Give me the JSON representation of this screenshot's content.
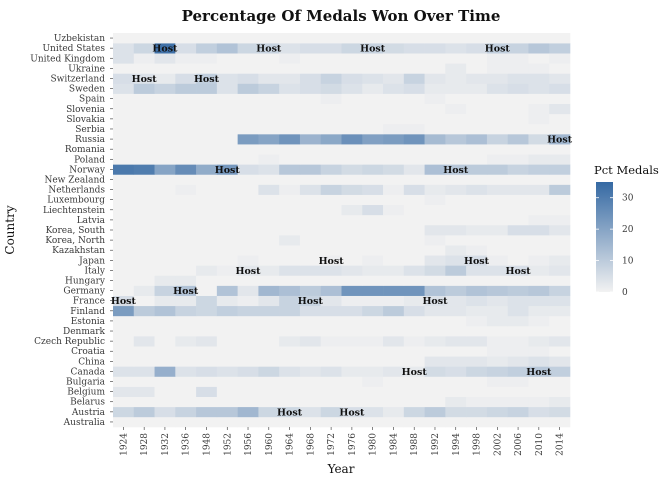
{
  "chart_data": {
    "type": "heatmap",
    "title": "Percentage Of Medals Won Over Time",
    "xlabel": "Year",
    "ylabel": "Country",
    "x": [
      "1924",
      "1928",
      "1932",
      "1936",
      "1948",
      "1952",
      "1956",
      "1960",
      "1964",
      "1968",
      "1972",
      "1976",
      "1980",
      "1984",
      "1988",
      "1992",
      "1994",
      "1998",
      "2002",
      "2006",
      "2010",
      "2014"
    ],
    "y": [
      "Australia",
      "Austria",
      "Belarus",
      "Belgium",
      "Bulgaria",
      "Canada",
      "China",
      "Croatia",
      "Czech Republic",
      "Denmark",
      "Estonia",
      "Finland",
      "France",
      "Germany",
      "Hungary",
      "Italy",
      "Japan",
      "Kazakhstan",
      "Korea, North",
      "Korea, South",
      "Latvia",
      "Liechtenstein",
      "Luxembourg",
      "Netherlands",
      "New Zealand",
      "Norway",
      "Poland",
      "Romania",
      "Russia",
      "Serbia",
      "Slovakia",
      "Slovenia",
      "Spain",
      "Sweden",
      "Switzerland",
      "Ukraine",
      "United Kingdom",
      "United States",
      "Uzbekistan"
    ],
    "values": {
      "United States": [
        4,
        7,
        33,
        5,
        9,
        12,
        7,
        8,
        4,
        5,
        5,
        7,
        8,
        6,
        5,
        5,
        4,
        5,
        9,
        8,
        11,
        9
      ],
      "United Kingdom": [
        4,
        1,
        3,
        1,
        1,
        0,
        0,
        0,
        1,
        0,
        0,
        0,
        0,
        0,
        0,
        0,
        0,
        0,
        1,
        1,
        0,
        1
      ],
      "Ukraine": [
        0,
        0,
        0,
        0,
        0,
        0,
        0,
        0,
        0,
        0,
        0,
        0,
        0,
        0,
        0,
        0,
        2,
        0,
        1,
        1,
        1,
        0
      ],
      "Switzerland": [
        5,
        4,
        2,
        5,
        9,
        4,
        5,
        3,
        3,
        5,
        8,
        5,
        4,
        3,
        8,
        3,
        2,
        3,
        3,
        4,
        4,
        3
      ],
      "Sweden": [
        4,
        10,
        8,
        10,
        10,
        4,
        10,
        8,
        4,
        5,
        6,
        4,
        2,
        4,
        5,
        2,
        2,
        2,
        4,
        5,
        4,
        5
      ],
      "Spain": [
        0,
        0,
        0,
        0,
        0,
        0,
        0,
        0,
        0,
        0,
        1,
        0,
        0,
        0,
        0,
        1,
        0,
        0,
        0,
        0,
        0,
        0
      ],
      "Slovenia": [
        0,
        0,
        0,
        0,
        0,
        0,
        0,
        0,
        0,
        0,
        0,
        0,
        0,
        0,
        0,
        0,
        1,
        0,
        0,
        0,
        1,
        3
      ],
      "Slovakia": [
        0,
        0,
        0,
        0,
        0,
        0,
        0,
        0,
        0,
        0,
        0,
        0,
        0,
        0,
        0,
        0,
        0,
        0,
        0,
        0,
        1,
        0
      ],
      "Serbia": [
        0,
        0,
        0,
        0,
        0,
        0,
        0,
        0,
        0,
        0,
        0,
        0,
        0,
        1,
        1,
        0,
        0,
        0,
        0,
        0,
        0,
        0
      ],
      "Russia": [
        0,
        0,
        0,
        0,
        0,
        0,
        22,
        20,
        24,
        16,
        19,
        25,
        21,
        22,
        24,
        14,
        11,
        13,
        8,
        11,
        6,
        15
      ],
      "Romania": [
        0,
        0,
        0,
        0,
        0,
        0,
        0,
        0,
        0,
        0,
        0,
        0,
        0,
        0,
        0,
        0,
        0,
        0,
        0,
        0,
        0,
        0
      ],
      "Poland": [
        0,
        0,
        0,
        0,
        0,
        0,
        0,
        1,
        0,
        0,
        0,
        0,
        0,
        0,
        0,
        0,
        0,
        0,
        1,
        1,
        2,
        2
      ],
      "Norway": [
        31,
        30,
        20,
        26,
        18,
        23,
        5,
        4,
        11,
        11,
        8,
        6,
        7,
        6,
        3,
        13,
        11,
        10,
        10,
        8,
        9,
        9
      ],
      "New Zealand": [
        0,
        0,
        0,
        0,
        0,
        0,
        0,
        0,
        0,
        0,
        0,
        0,
        0,
        0,
        0,
        0,
        0,
        0,
        0,
        0,
        0,
        0
      ],
      "Netherlands": [
        0,
        0,
        0,
        1,
        0,
        0,
        0,
        4,
        1,
        4,
        8,
        6,
        5,
        1,
        5,
        2,
        3,
        4,
        3,
        3,
        3,
        10
      ],
      "Luxembourg": [
        0,
        0,
        0,
        0,
        0,
        0,
        0,
        0,
        0,
        0,
        0,
        0,
        0,
        0,
        0,
        1,
        0,
        0,
        0,
        0,
        0,
        0
      ],
      "Liechtenstein": [
        0,
        0,
        0,
        0,
        0,
        0,
        0,
        0,
        0,
        0,
        0,
        2,
        5,
        1,
        0,
        0,
        0,
        0,
        0,
        0,
        0,
        0
      ],
      "Latvia": [
        0,
        0,
        0,
        0,
        0,
        0,
        0,
        0,
        0,
        0,
        0,
        0,
        0,
        0,
        0,
        0,
        0,
        0,
        0,
        0,
        1,
        1
      ],
      "Korea, South": [
        0,
        0,
        0,
        0,
        0,
        0,
        0,
        0,
        0,
        0,
        0,
        0,
        0,
        0,
        0,
        3,
        3,
        2,
        2,
        5,
        5,
        3
      ],
      "Korea, North": [
        0,
        0,
        0,
        0,
        0,
        0,
        0,
        0,
        2,
        0,
        0,
        0,
        0,
        0,
        0,
        1,
        0,
        0,
        0,
        0,
        0,
        0
      ],
      "Kazakhstan": [
        0,
        0,
        0,
        0,
        0,
        0,
        0,
        0,
        0,
        0,
        0,
        0,
        0,
        0,
        0,
        0,
        2,
        1,
        0,
        0,
        0,
        0
      ],
      "Japan": [
        0,
        0,
        0,
        0,
        0,
        0,
        1,
        0,
        0,
        0,
        1,
        0,
        1,
        0,
        0,
        3,
        4,
        5,
        1,
        0,
        1,
        2
      ],
      "Italy": [
        0,
        0,
        0,
        0,
        2,
        1,
        3,
        2,
        4,
        4,
        4,
        3,
        2,
        2,
        4,
        6,
        10,
        4,
        4,
        5,
        2,
        3
      ],
      "Hungary": [
        0,
        0,
        2,
        2,
        0,
        0,
        0,
        0,
        0,
        0,
        0,
        0,
        0,
        0,
        0,
        0,
        0,
        0,
        0,
        0,
        0,
        0
      ],
      "Germany": [
        0,
        2,
        8,
        12,
        0,
        12,
        3,
        15,
        13,
        10,
        13,
        24,
        24,
        24,
        24,
        12,
        10,
        12,
        11,
        10,
        11,
        8
      ],
      "France": [
        5,
        0,
        2,
        2,
        7,
        2,
        1,
        3,
        8,
        8,
        3,
        1,
        1,
        1,
        2,
        4,
        3,
        4,
        3,
        4,
        4,
        4
      ],
      "Finland": [
        22,
        10,
        12,
        8,
        7,
        9,
        8,
        8,
        8,
        5,
        5,
        5,
        7,
        10,
        5,
        3,
        3,
        2,
        2,
        4,
        2,
        2
      ],
      "Estonia": [
        0,
        0,
        0,
        0,
        0,
        0,
        0,
        0,
        0,
        0,
        0,
        0,
        0,
        0,
        0,
        0,
        0,
        1,
        2,
        2,
        1,
        0
      ],
      "Denmark": [
        0,
        0,
        0,
        0,
        0,
        0,
        0,
        0,
        0,
        0,
        0,
        0,
        0,
        0,
        0,
        0,
        0,
        0,
        0,
        0,
        0,
        0
      ],
      "Czech Republic": [
        0,
        3,
        0,
        2,
        3,
        0,
        0,
        0,
        2,
        3,
        1,
        1,
        1,
        3,
        1,
        2,
        3,
        3,
        1,
        1,
        2,
        3
      ],
      "Croatia": [
        0,
        0,
        0,
        0,
        0,
        0,
        0,
        0,
        0,
        0,
        0,
        0,
        0,
        0,
        0,
        0,
        0,
        0,
        1,
        1,
        1,
        0
      ],
      "China": [
        0,
        0,
        0,
        0,
        0,
        0,
        0,
        0,
        0,
        0,
        0,
        0,
        0,
        0,
        0,
        3,
        3,
        3,
        2,
        3,
        4,
        3
      ],
      "Canada": [
        4,
        4,
        17,
        4,
        5,
        4,
        5,
        7,
        4,
        3,
        4,
        2,
        2,
        3,
        2,
        6,
        5,
        7,
        8,
        9,
        11,
        9
      ],
      "Bulgaria": [
        0,
        0,
        0,
        0,
        0,
        0,
        0,
        0,
        0,
        0,
        0,
        0,
        1,
        0,
        0,
        0,
        0,
        0,
        1,
        1,
        0,
        0
      ],
      "Belgium": [
        3,
        3,
        0,
        0,
        5,
        0,
        0,
        0,
        0,
        0,
        0,
        0,
        0,
        0,
        0,
        0,
        0,
        0,
        0,
        0,
        0,
        0
      ],
      "Belarus": [
        0,
        0,
        0,
        0,
        0,
        0,
        0,
        0,
        0,
        0,
        0,
        0,
        0,
        0,
        0,
        0,
        2,
        1,
        1,
        1,
        1,
        2
      ],
      "Austria": [
        7,
        10,
        5,
        8,
        11,
        11,
        15,
        7,
        7,
        4,
        7,
        5,
        4,
        2,
        7,
        10,
        6,
        6,
        7,
        8,
        5,
        6
      ],
      "Australia": [
        0,
        0,
        0,
        0,
        0,
        0,
        0,
        0,
        0,
        0,
        0,
        0,
        0,
        0,
        0,
        0,
        0,
        0,
        0,
        0,
        0,
        0
      ],
      "Uzbekistan": [
        0,
        0,
        0,
        0,
        0,
        0,
        0,
        0,
        0,
        0,
        0,
        0,
        0,
        0,
        0,
        0,
        0,
        0,
        0,
        0,
        0,
        0
      ]
    },
    "host_label": "Host",
    "hosts": [
      {
        "country": "United States",
        "year": "1932"
      },
      {
        "country": "United States",
        "year": "1960"
      },
      {
        "country": "United States",
        "year": "1980"
      },
      {
        "country": "United States",
        "year": "2002"
      },
      {
        "country": "Switzerland",
        "year": "1928"
      },
      {
        "country": "Switzerland",
        "year": "1948"
      },
      {
        "country": "Russia",
        "year": "2014"
      },
      {
        "country": "Norway",
        "year": "1952"
      },
      {
        "country": "Norway",
        "year": "1994"
      },
      {
        "country": "Japan",
        "year": "1972"
      },
      {
        "country": "Japan",
        "year": "1998"
      },
      {
        "country": "Italy",
        "year": "1956"
      },
      {
        "country": "Italy",
        "year": "2006"
      },
      {
        "country": "Germany",
        "year": "1936"
      },
      {
        "country": "France",
        "year": "1924"
      },
      {
        "country": "France",
        "year": "1968"
      },
      {
        "country": "France",
        "year": "1992"
      },
      {
        "country": "Canada",
        "year": "1988"
      },
      {
        "country": "Canada",
        "year": "2010"
      },
      {
        "country": "Austria",
        "year": "1964"
      },
      {
        "country": "Austria",
        "year": "1976"
      }
    ],
    "legend": {
      "title": "Pct Medals",
      "min": 0,
      "max": 35,
      "ticks": [
        0,
        10,
        20,
        30
      ],
      "color_low": "#f2f2f2",
      "color_high": "#3569a3",
      "placement": "right"
    },
    "grid": false,
    "background": "#f2f2f2"
  }
}
